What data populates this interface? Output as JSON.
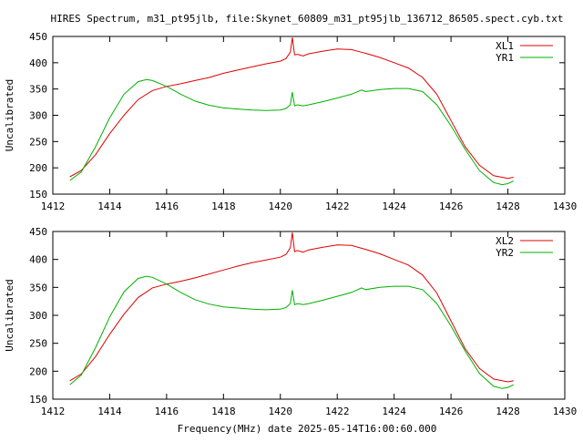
{
  "title": "HIRES Spectrum, m31_pt95jlb, file:Skynet_60809_m31_pt95jlb_136712_86505.spect.cyb.txt",
  "xlabel": "Frequency(MHz) date 2025-05-14T16:00:60.000",
  "colors": {
    "red": "#e00000",
    "green": "#00b000"
  },
  "chart_data": [
    {
      "type": "line",
      "ylabel": "Uncalibrated",
      "xlim": [
        1412,
        1430
      ],
      "ylim": [
        150,
        450
      ],
      "xticks": [
        "1412",
        "1414",
        "1416",
        "1418",
        "1420",
        "1422",
        "1424",
        "1426",
        "1428",
        "1430"
      ],
      "yticks": [
        "150",
        "200",
        "250",
        "300",
        "350",
        "400",
        "450"
      ],
      "legend_position": "top-right",
      "series": [
        {
          "name": "XL1",
          "color": "#e00000",
          "x": [
            1412.6,
            1413.0,
            1413.5,
            1414.0,
            1414.5,
            1415.0,
            1415.5,
            1416.0,
            1416.5,
            1417.0,
            1417.5,
            1418.0,
            1418.5,
            1419.0,
            1419.5,
            1420.0,
            1420.2,
            1420.35,
            1420.42,
            1420.5,
            1420.6,
            1420.8,
            1421.0,
            1421.5,
            1422.0,
            1422.5,
            1422.85,
            1423.0,
            1423.5,
            1424.0,
            1424.5,
            1425.0,
            1425.5,
            1426.0,
            1426.5,
            1427.0,
            1427.5,
            1428.0,
            1428.2
          ],
          "y": [
            183,
            195,
            225,
            265,
            300,
            330,
            347,
            355,
            360,
            366,
            372,
            380,
            386,
            392,
            398,
            403,
            408,
            420,
            448,
            415,
            416,
            413,
            417,
            422,
            426,
            425,
            420,
            418,
            410,
            400,
            390,
            372,
            340,
            290,
            240,
            205,
            185,
            180,
            182
          ]
        },
        {
          "name": "YR1",
          "color": "#00b000",
          "x": [
            1412.6,
            1413.0,
            1413.5,
            1414.0,
            1414.5,
            1415.0,
            1415.3,
            1415.5,
            1416.0,
            1416.5,
            1417.0,
            1417.5,
            1418.0,
            1418.5,
            1419.0,
            1419.5,
            1420.0,
            1420.2,
            1420.35,
            1420.42,
            1420.5,
            1420.6,
            1420.8,
            1421.0,
            1421.5,
            1422.0,
            1422.5,
            1422.85,
            1423.0,
            1423.5,
            1424.0,
            1424.5,
            1425.0,
            1425.5,
            1426.0,
            1426.5,
            1427.0,
            1427.5,
            1427.8,
            1428.0,
            1428.2
          ],
          "y": [
            176,
            192,
            240,
            295,
            340,
            364,
            368,
            366,
            355,
            340,
            327,
            319,
            314,
            312,
            310,
            309,
            310,
            313,
            320,
            344,
            318,
            320,
            318,
            320,
            326,
            333,
            340,
            348,
            345,
            349,
            351,
            351,
            345,
            320,
            280,
            235,
            195,
            172,
            168,
            170,
            175
          ]
        }
      ]
    },
    {
      "type": "line",
      "ylabel": "Uncalibrated",
      "xlim": [
        1412,
        1430
      ],
      "ylim": [
        150,
        450
      ],
      "xticks": [
        "1412",
        "1414",
        "1416",
        "1418",
        "1420",
        "1422",
        "1424",
        "1426",
        "1428",
        "1430"
      ],
      "yticks": [
        "150",
        "200",
        "250",
        "300",
        "350",
        "400",
        "450"
      ],
      "legend_position": "top-right",
      "series": [
        {
          "name": "XL2",
          "color": "#e00000",
          "x": [
            1412.6,
            1413.0,
            1413.5,
            1414.0,
            1414.5,
            1415.0,
            1415.5,
            1416.0,
            1416.5,
            1417.0,
            1417.5,
            1418.0,
            1418.5,
            1419.0,
            1419.5,
            1420.0,
            1420.2,
            1420.35,
            1420.42,
            1420.5,
            1420.6,
            1420.8,
            1421.0,
            1421.5,
            1422.0,
            1422.5,
            1422.85,
            1423.0,
            1423.5,
            1424.0,
            1424.5,
            1425.0,
            1425.5,
            1426.0,
            1426.5,
            1427.0,
            1427.5,
            1428.0,
            1428.2
          ],
          "y": [
            183,
            195,
            226,
            266,
            302,
            332,
            349,
            356,
            361,
            367,
            374,
            381,
            388,
            394,
            399,
            404,
            409,
            421,
            448,
            414,
            416,
            413,
            417,
            422,
            426,
            425,
            420,
            418,
            410,
            400,
            390,
            372,
            340,
            290,
            240,
            205,
            186,
            181,
            183
          ]
        },
        {
          "name": "YR2",
          "color": "#00b000",
          "x": [
            1412.6,
            1413.0,
            1413.5,
            1414.0,
            1414.5,
            1415.0,
            1415.3,
            1415.5,
            1416.0,
            1416.5,
            1417.0,
            1417.5,
            1418.0,
            1418.5,
            1419.0,
            1419.5,
            1420.0,
            1420.2,
            1420.35,
            1420.42,
            1420.5,
            1420.6,
            1420.8,
            1421.0,
            1421.5,
            1422.0,
            1422.5,
            1422.85,
            1423.0,
            1423.5,
            1424.0,
            1424.5,
            1425.0,
            1425.5,
            1426.0,
            1426.5,
            1427.0,
            1427.5,
            1427.8,
            1428.0,
            1428.2
          ],
          "y": [
            176,
            193,
            242,
            297,
            342,
            366,
            370,
            368,
            356,
            341,
            328,
            320,
            315,
            313,
            311,
            310,
            311,
            314,
            321,
            345,
            319,
            321,
            319,
            321,
            327,
            334,
            341,
            349,
            346,
            350,
            352,
            352,
            346,
            321,
            281,
            236,
            196,
            173,
            169,
            171,
            176
          ]
        }
      ]
    }
  ]
}
